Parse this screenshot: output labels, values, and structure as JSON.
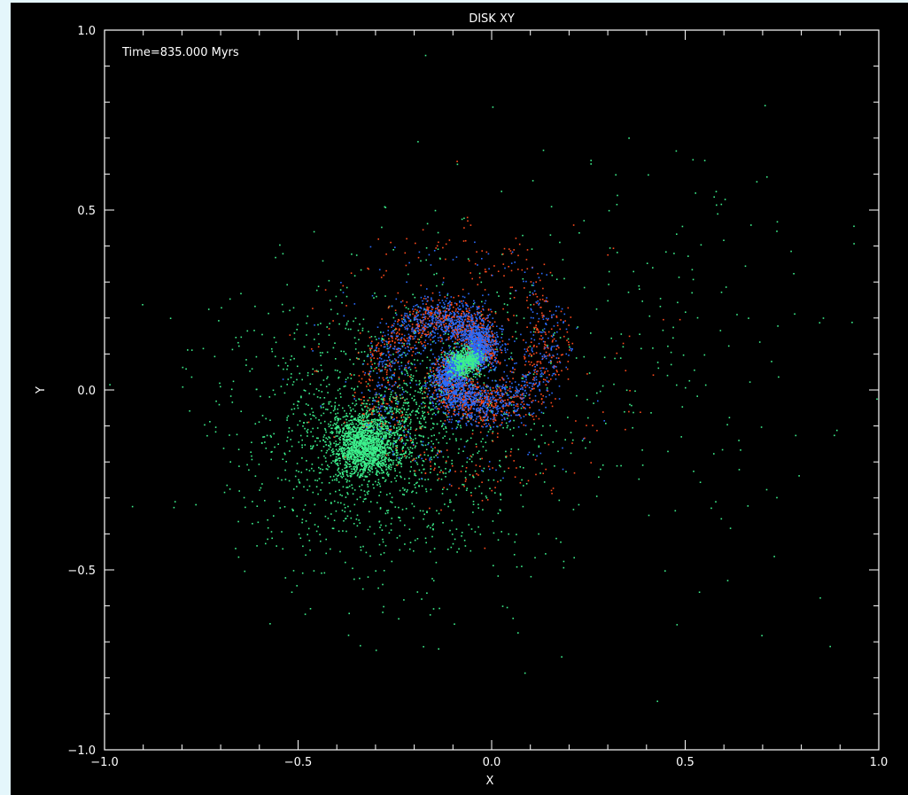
{
  "chart_data": {
    "type": "scatter",
    "title": "DISK XY",
    "xlabel": "X",
    "ylabel": "Y",
    "xlim": [
      -1.0,
      1.0
    ],
    "ylim": [
      -1.0,
      1.0
    ],
    "x_ticks": [
      "−1.0",
      "−0.5",
      "0.0",
      "0.5",
      "1.0"
    ],
    "y_ticks": [
      "−1.0",
      "−0.5",
      "0.0",
      "0.5",
      "1.0"
    ],
    "annotation": "Time=835.000 Myrs",
    "grid": false,
    "background": "#000000",
    "axis_color": "#ffffff",
    "components": [
      {
        "id": "companion-core",
        "color": "#3cf08c",
        "center": [
          -0.33,
          -0.15
        ],
        "spread": 0.045,
        "count": 1600,
        "kind": "blob"
      },
      {
        "id": "companion-halo",
        "color": "#3cf08c",
        "center": [
          -0.3,
          -0.12
        ],
        "spread": 0.2,
        "count": 1400,
        "kind": "blob"
      },
      {
        "id": "companion-tail",
        "color": "#3cf08c",
        "center": [
          0.3,
          0.1
        ],
        "spread": 0.32,
        "count": 300,
        "kind": "blob"
      },
      {
        "id": "galaxy-disk-red",
        "color": "#ff4a1c",
        "center": [
          -0.07,
          0.08
        ],
        "spread": 0.16,
        "count": 2400,
        "kind": "spiral"
      },
      {
        "id": "galaxy-disk-blue",
        "color": "#2a6cff",
        "center": [
          -0.07,
          0.08
        ],
        "spread": 0.12,
        "count": 3400,
        "kind": "spiral"
      },
      {
        "id": "galaxy-core",
        "color": "#3cf08c",
        "center": [
          -0.07,
          0.08
        ],
        "spread": 0.022,
        "count": 500,
        "kind": "blob"
      },
      {
        "id": "bridge",
        "color": "#3cf08c",
        "center": [
          -0.2,
          -0.05
        ],
        "spread": 0.05,
        "count": 150,
        "kind": "blob"
      }
    ]
  }
}
